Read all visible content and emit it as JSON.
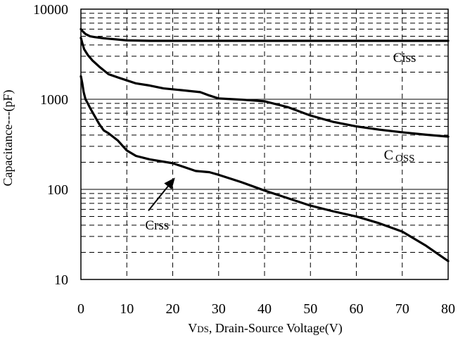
{
  "chart_data": {
    "type": "line",
    "title": "",
    "xlabel": "VDS, Drain-Source Voltage(V)",
    "xlabel_parts": {
      "main": "V",
      "sub": "DS",
      "rest": ", Drain-Source Voltage(V)"
    },
    "ylabel": "Capacitance---(pF)",
    "xlim": [
      0,
      80
    ],
    "ylim": [
      10,
      10000
    ],
    "y_scale": "log",
    "x_ticks": [
      0,
      10,
      20,
      30,
      40,
      50,
      60,
      70,
      80
    ],
    "x_tick_labels": [
      "0",
      "10",
      "20",
      "30",
      "40",
      "50",
      "60",
      "70",
      "80"
    ],
    "y_ticks": [
      10,
      100,
      1000,
      10000
    ],
    "y_tick_labels": [
      "10",
      "100",
      "1000",
      "10000"
    ],
    "grid": true,
    "legend": "none",
    "series": [
      {
        "name": "Ciss",
        "x": [
          0,
          0.5,
          1,
          2,
          3,
          5,
          7,
          10,
          15,
          20,
          30,
          40,
          50,
          60,
          70,
          80
        ],
        "y": [
          6000,
          5600,
          5300,
          5000,
          4900,
          4750,
          4650,
          4500,
          4450,
          4450,
          4450,
          4450,
          4450,
          4450,
          4450,
          4450
        ]
      },
      {
        "name": "Coss",
        "x": [
          0,
          0.3,
          0.7,
          1.5,
          2.5,
          4,
          6,
          8,
          10,
          12,
          15,
          18,
          22,
          26,
          28,
          30,
          35,
          40,
          45,
          50,
          55,
          60,
          65,
          70,
          75,
          80
        ],
        "y": [
          4800,
          4200,
          3600,
          3100,
          2700,
          2300,
          1900,
          1750,
          1620,
          1500,
          1420,
          1320,
          1260,
          1200,
          1100,
          1020,
          990,
          950,
          820,
          660,
          560,
          500,
          460,
          430,
          405,
          385
        ]
      },
      {
        "name": "Crss",
        "x": [
          0,
          0.3,
          0.6,
          1,
          1.5,
          2,
          3,
          4,
          5,
          6,
          8,
          10,
          12,
          15,
          20,
          25,
          28,
          30,
          35,
          40,
          45,
          50,
          55,
          60,
          65,
          70,
          75,
          80
        ],
        "y": [
          1800,
          1500,
          1200,
          1000,
          900,
          800,
          650,
          530,
          450,
          420,
          350,
          270,
          235,
          215,
          195,
          160,
          155,
          145,
          120,
          97,
          80,
          66,
          57,
          50,
          42,
          34,
          24,
          16
        ]
      }
    ],
    "annotations": [
      {
        "text": "Ciss",
        "x": 68,
        "y": 2600
      },
      {
        "text": "C",
        "subtext": "OSS",
        "x": 66,
        "y": 215
      },
      {
        "text": "Crss",
        "x": 14,
        "y": 36
      }
    ],
    "arrow": {
      "from": {
        "x": 14.7,
        "y": 58
      },
      "to": {
        "x": 20.5,
        "y": 135
      }
    }
  }
}
